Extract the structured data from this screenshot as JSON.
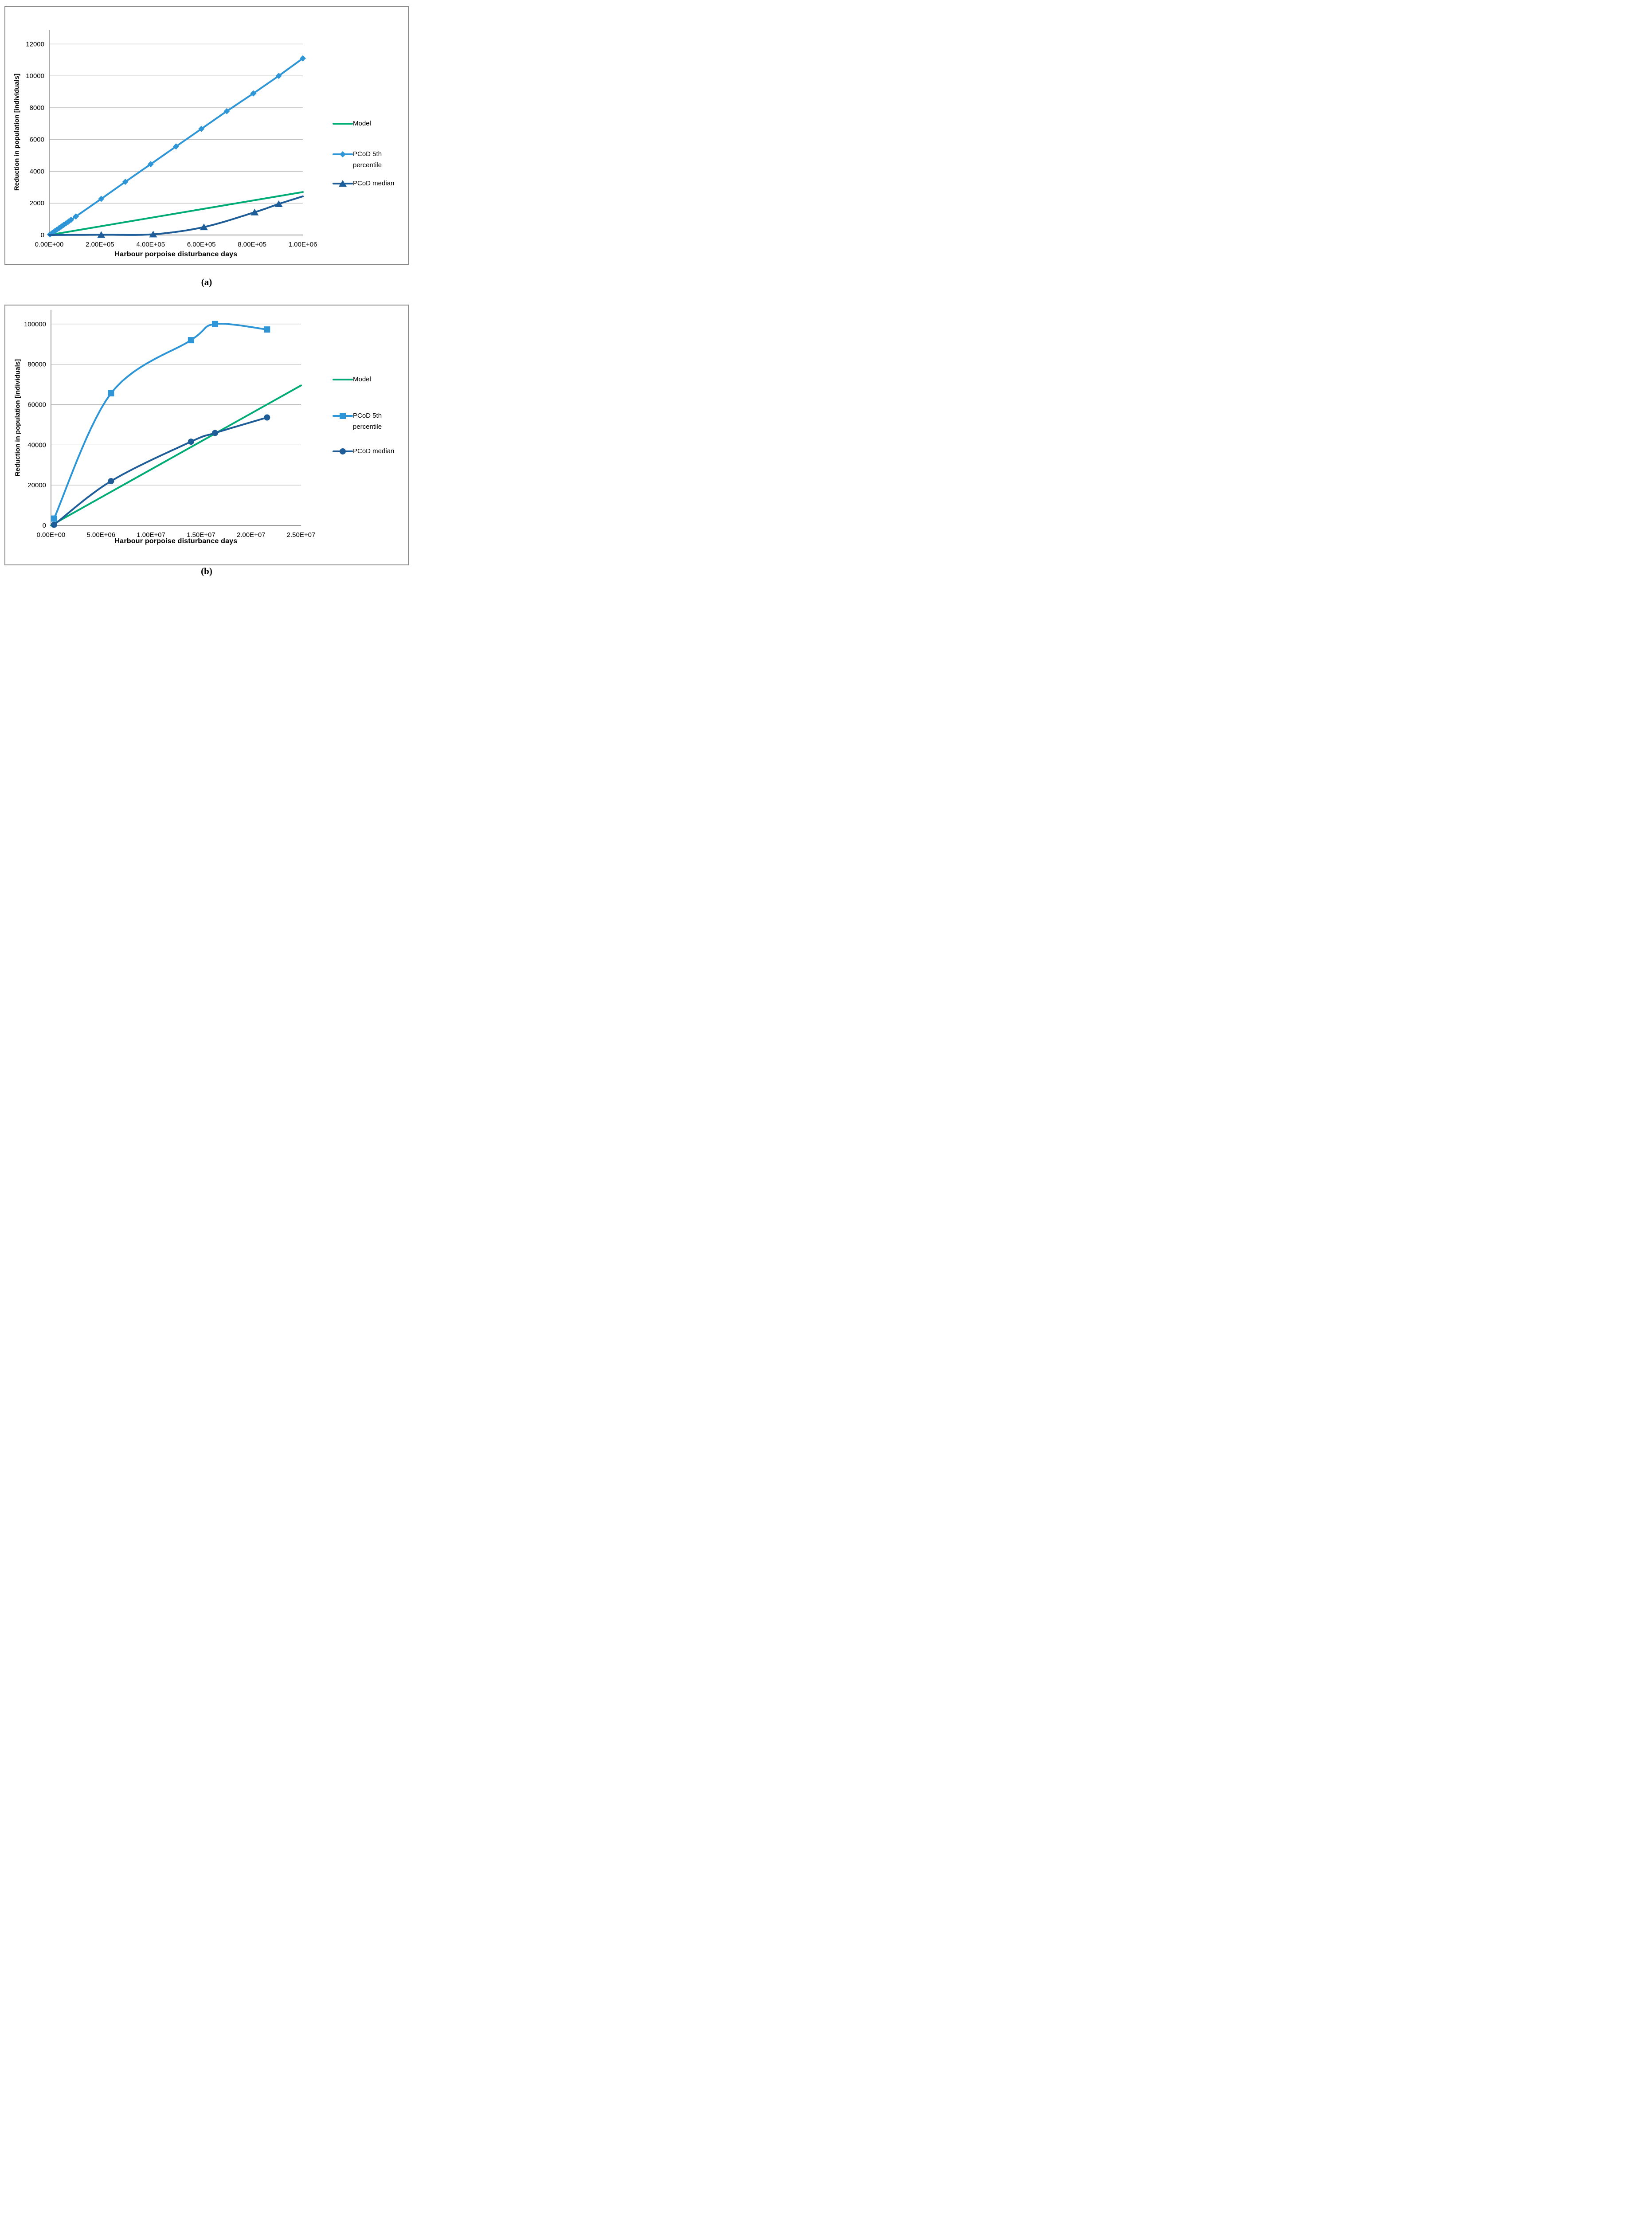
{
  "figure": {
    "background": "#ffffff",
    "panel_border_color": "#8c8c8c",
    "gridline_color": "#b0b0b0",
    "axis_color": "#9e9e9e",
    "text_color": "#000000"
  },
  "captions": {
    "a": "(a)",
    "b": "(b)"
  },
  "chart_data": [
    {
      "id": "a",
      "type": "line",
      "title": "",
      "xlabel": "Harbour porpoise disturbance days",
      "ylabel": "Reduction in population [individuals]",
      "xlim": [
        0,
        1000000
      ],
      "ylim": [
        0,
        12900
      ],
      "grid": "horizontal",
      "legend_position": "right",
      "x_ticks": [
        {
          "value": 0,
          "label": "0.00E+00"
        },
        {
          "value": 200000,
          "label": "2.00E+05"
        },
        {
          "value": 400000,
          "label": "4.00E+05"
        },
        {
          "value": 600000,
          "label": "6.00E+05"
        },
        {
          "value": 800000,
          "label": "8.00E+05"
        },
        {
          "value": 1000000,
          "label": "1.00E+06"
        }
      ],
      "y_ticks": [
        {
          "value": 0,
          "label": "0"
        },
        {
          "value": 2000,
          "label": "2000"
        },
        {
          "value": 4000,
          "label": "4000"
        },
        {
          "value": 6000,
          "label": "6000"
        },
        {
          "value": 8000,
          "label": "8000"
        },
        {
          "value": 10000,
          "label": "10000"
        },
        {
          "value": 12000,
          "label": "12000"
        }
      ],
      "series": [
        {
          "name": "Model",
          "color": "#00ac75",
          "marker": "none",
          "smooth": false,
          "legend_lines": [
            "Model"
          ],
          "points": [
            [
              0,
              0
            ],
            [
              1000000,
              2700
            ]
          ]
        },
        {
          "name": "PCoD 5th percentile",
          "color": "#2e96d6",
          "marker": "diamond",
          "smooth": false,
          "legend_lines": [
            "PCoD 5th",
            "percentile"
          ],
          "points": [
            [
              3000,
              35
            ],
            [
              12000,
              135
            ],
            [
              21000,
              235
            ],
            [
              30000,
              335
            ],
            [
              39000,
              435
            ],
            [
              48000,
              535
            ],
            [
              57000,
              635
            ],
            [
              66000,
              735
            ],
            [
              76000,
              845
            ],
            [
              86000,
              955
            ],
            [
              105000,
              1165
            ],
            [
              205000,
              2270
            ],
            [
              300000,
              3340
            ],
            [
              400000,
              4450
            ],
            [
              500000,
              5560
            ],
            [
              600000,
              6670
            ],
            [
              700000,
              7780
            ],
            [
              805000,
              8900
            ],
            [
              905000,
              10000
            ],
            [
              1000000,
              11100
            ]
          ]
        },
        {
          "name": "PCoD median",
          "color": "#1f5d99",
          "marker": "triangle",
          "smooth": true,
          "legend_lines": [
            "PCoD median"
          ],
          "marker_indices": [
            1,
            2,
            3,
            4,
            5
          ],
          "points": [
            [
              0,
              0
            ],
            [
              205000,
              15
            ],
            [
              410000,
              45
            ],
            [
              610000,
              500
            ],
            [
              810000,
              1430
            ],
            [
              905000,
              1950
            ],
            [
              1000000,
              2430
            ]
          ]
        }
      ]
    },
    {
      "id": "b",
      "type": "line",
      "title": "",
      "xlabel": "Harbour porpoise disturbance days",
      "ylabel": "Reduction in population [individuals]",
      "xlim": [
        0,
        25000000
      ],
      "ylim": [
        0,
        107000
      ],
      "grid": "horizontal",
      "legend_position": "right",
      "x_ticks": [
        {
          "value": 0,
          "label": "0.00E+00"
        },
        {
          "value": 5000000,
          "label": "5.00E+06"
        },
        {
          "value": 10000000,
          "label": "1.00E+07"
        },
        {
          "value": 15000000,
          "label": "1.50E+07"
        },
        {
          "value": 20000000,
          "label": "2.00E+07"
        },
        {
          "value": 25000000,
          "label": "2.50E+07"
        }
      ],
      "y_ticks": [
        {
          "value": 0,
          "label": "0"
        },
        {
          "value": 20000,
          "label": "20000"
        },
        {
          "value": 40000,
          "label": "40000"
        },
        {
          "value": 60000,
          "label": "60000"
        },
        {
          "value": 80000,
          "label": "80000"
        },
        {
          "value": 100000,
          "label": "100000"
        }
      ],
      "series": [
        {
          "name": "Model",
          "color": "#00ac75",
          "marker": "none",
          "smooth": false,
          "legend_lines": [
            "Model"
          ],
          "points": [
            [
              0,
              0
            ],
            [
              25000000,
              69500
            ]
          ]
        },
        {
          "name": "PCoD 5th percentile",
          "color": "#2e96d6",
          "marker": "square",
          "smooth": true,
          "legend_lines": [
            "PCoD 5th",
            "percentile"
          ],
          "points": [
            [
              300000,
              3400
            ],
            [
              6000000,
              65600
            ],
            [
              14000000,
              92000
            ],
            [
              16400000,
              100000
            ],
            [
              21600000,
              97300
            ]
          ]
        },
        {
          "name": "PCoD median",
          "color": "#1f5d99",
          "marker": "circle",
          "smooth": true,
          "legend_lines": [
            "PCoD median"
          ],
          "points": [
            [
              300000,
              300
            ],
            [
              6000000,
              22000
            ],
            [
              14000000,
              41600
            ],
            [
              16400000,
              45900
            ],
            [
              21600000,
              53600
            ]
          ]
        }
      ]
    }
  ]
}
